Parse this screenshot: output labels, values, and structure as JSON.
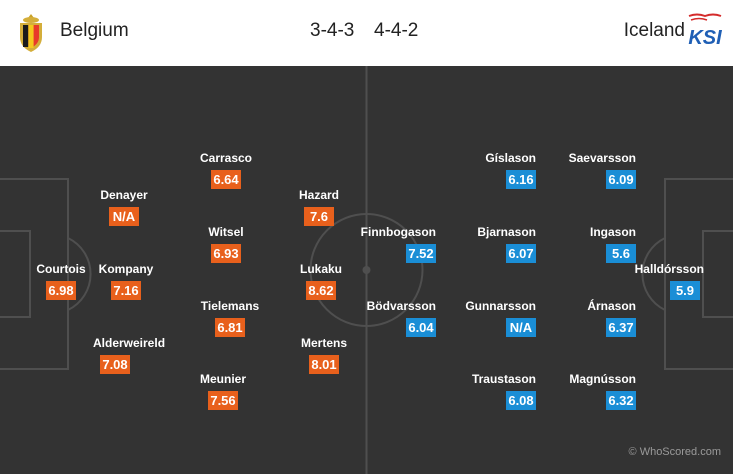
{
  "header": {
    "home_team": "Belgium",
    "away_team": "Iceland",
    "home_formation": "3-4-3",
    "away_formation": "4-4-2",
    "away_logo_text": "KSI"
  },
  "colors": {
    "pitch": "#333333",
    "home_rating": "#e8601c",
    "away_rating": "#1a8ed6"
  },
  "home_players": [
    {
      "name": "Courtois",
      "rating": "6.98"
    },
    {
      "name": "Denayer",
      "rating": "N/A"
    },
    {
      "name": "Kompany",
      "rating": "7.16"
    },
    {
      "name": "Alderweireld",
      "rating": "7.08"
    },
    {
      "name": "Carrasco",
      "rating": "6.64"
    },
    {
      "name": "Witsel",
      "rating": "6.93"
    },
    {
      "name": "Tielemans",
      "rating": "6.81"
    },
    {
      "name": "Meunier",
      "rating": "7.56"
    },
    {
      "name": "Hazard",
      "rating": "7.6"
    },
    {
      "name": "Lukaku",
      "rating": "8.62"
    },
    {
      "name": "Mertens",
      "rating": "8.01"
    }
  ],
  "away_players": [
    {
      "name": "Finnbogason",
      "rating": "7.52"
    },
    {
      "name": "Bödvarsson",
      "rating": "6.04"
    },
    {
      "name": "Gíslason",
      "rating": "6.16"
    },
    {
      "name": "Bjarnason",
      "rating": "6.07"
    },
    {
      "name": "Gunnarsson",
      "rating": "N/A"
    },
    {
      "name": "Traustason",
      "rating": "6.08"
    },
    {
      "name": "Saevarsson",
      "rating": "6.09"
    },
    {
      "name": "Ingason",
      "rating": "5.6"
    },
    {
      "name": "Árnason",
      "rating": "6.37"
    },
    {
      "name": "Magnússon",
      "rating": "6.32"
    },
    {
      "name": "Halldórsson",
      "rating": "5.9"
    }
  ],
  "credit": "© WhoScored.com"
}
